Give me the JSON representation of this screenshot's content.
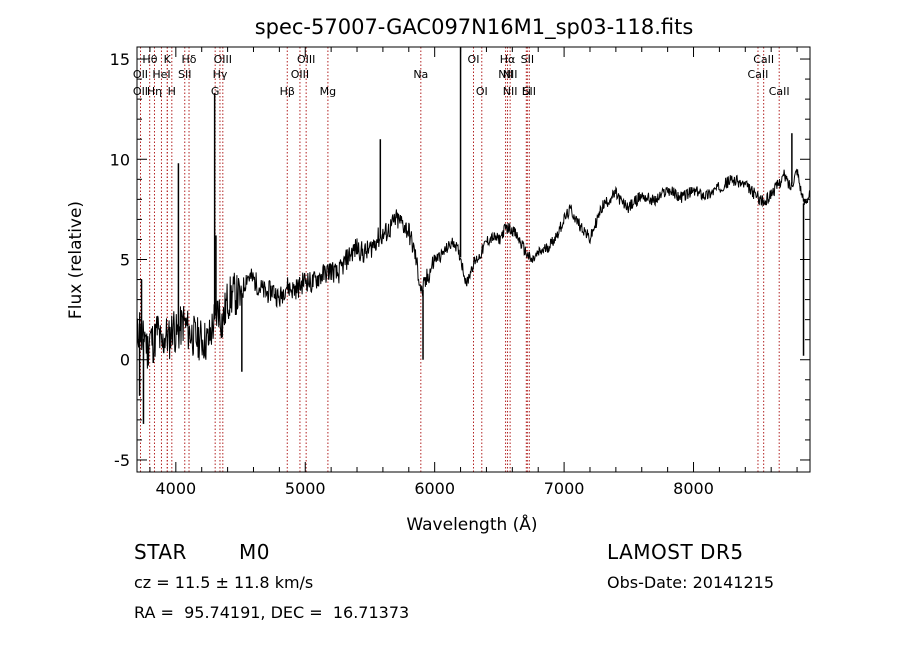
{
  "chart_data": {
    "type": "line",
    "title": "spec-57007-GAC097N16M1_sp03-118.fits",
    "xlabel": "Wavelength (Å)",
    "ylabel": "Flux (relative)",
    "xlim": [
      3700,
      8900
    ],
    "ylim": [
      -5.6,
      15.6
    ],
    "xticks": [
      4000,
      5000,
      6000,
      7000,
      8000
    ],
    "yticks": [
      -5,
      0,
      5,
      10,
      15
    ],
    "grid": false,
    "series": [
      {
        "x": [
          3700,
          3720,
          3740,
          3760,
          3780,
          3800,
          3830,
          3860,
          3890,
          3920,
          3950,
          3980,
          4000,
          4030,
          4060,
          4100,
          4150,
          4200,
          4250,
          4300,
          4330,
          4360,
          4400,
          4450,
          4500,
          4550,
          4600,
          4650,
          4700,
          4750,
          4800,
          4850,
          4900,
          4950,
          5000,
          5050,
          5100,
          5150,
          5200,
          5250,
          5300,
          5350,
          5400,
          5450,
          5500,
          5550,
          5600,
          5650,
          5700,
          5750,
          5800,
          5850,
          5900,
          5950,
          6000,
          6050,
          6100,
          6150,
          6200,
          6230,
          6250,
          6280,
          6300,
          6350,
          6400,
          6450,
          6500,
          6550,
          6600,
          6650,
          6700,
          6750,
          6800,
          6850,
          6900,
          6950,
          7000,
          7050,
          7100,
          7150,
          7200,
          7250,
          7300,
          7350,
          7400,
          7450,
          7500,
          7600,
          7700,
          7800,
          7900,
          8000,
          8100,
          8200,
          8300,
          8400,
          8500,
          8550,
          8600,
          8650,
          8700,
          8750,
          8800,
          8850,
          8900
        ],
        "y": [
          1.0,
          1.8,
          0.6,
          1.5,
          0.4,
          1.2,
          0.8,
          1.6,
          0.5,
          1.3,
          1.0,
          1.8,
          1.2,
          1.5,
          1.9,
          1.4,
          1.1,
          1.0,
          0.9,
          2.0,
          2.6,
          1.8,
          3.0,
          3.3,
          3.1,
          4.2,
          4.0,
          3.6,
          3.3,
          3.5,
          3.0,
          3.7,
          3.5,
          3.6,
          4.0,
          3.8,
          4.1,
          4.3,
          4.5,
          4.2,
          4.8,
          5.3,
          5.6,
          5.3,
          5.5,
          6.0,
          6.2,
          6.5,
          7.0,
          6.8,
          6.4,
          5.2,
          3.3,
          4.2,
          5.0,
          5.2,
          5.6,
          5.9,
          5.1,
          4.2,
          3.8,
          4.5,
          4.8,
          5.2,
          5.9,
          6.1,
          6.0,
          6.6,
          6.5,
          6.0,
          5.4,
          4.9,
          5.3,
          5.5,
          5.8,
          6.3,
          7.0,
          7.5,
          6.9,
          6.5,
          6.0,
          6.9,
          7.7,
          8.0,
          8.3,
          7.8,
          7.6,
          8.2,
          7.9,
          8.5,
          8.1,
          8.4,
          8.2,
          8.6,
          9.0,
          8.7,
          8.1,
          7.8,
          8.3,
          8.7,
          9.2,
          8.6,
          9.5,
          7.8,
          8.3
        ]
      }
    ],
    "spikes": [
      {
        "x": 3720,
        "y": -1.8
      },
      {
        "x": 3735,
        "y": 4.0
      },
      {
        "x": 3750,
        "y": -3.2
      },
      {
        "x": 4020,
        "y": 9.8
      },
      {
        "x": 4300,
        "y": 13.3
      },
      {
        "x": 4310,
        "y": 6.2
      },
      {
        "x": 4510,
        "y": -0.6
      },
      {
        "x": 5580,
        "y": 11.0
      },
      {
        "x": 5910,
        "y": 0.0
      },
      {
        "x": 6200,
        "y": 15.6
      },
      {
        "x": 6210,
        "y": 4.8
      },
      {
        "x": 8760,
        "y": 11.3
      },
      {
        "x": 8850,
        "y": 0.2
      }
    ],
    "lines": [
      {
        "label": "CaII",
        "x": 3934
      },
      {
        "label": "H",
        "x": 3969
      },
      {
        "label": "K",
        "x": 3934
      },
      {
        "label": "Hδ",
        "x": 4102
      },
      {
        "label": "SII",
        "x": 4069
      },
      {
        "label": "G",
        "x": 4304
      },
      {
        "label": "Hγ",
        "x": 4341
      },
      {
        "label": "OIII",
        "x": 4363
      },
      {
        "label": "Hβ",
        "x": 4861
      },
      {
        "label": "OIII",
        "x": 4959
      },
      {
        "label": "OIII",
        "x": 5007
      },
      {
        "label": "Mg",
        "x": 5175
      },
      {
        "label": "Na",
        "x": 5893
      },
      {
        "label": "OI",
        "x": 6300
      },
      {
        "label": "OI",
        "x": 6364
      },
      {
        "label": "NII",
        "x": 6548
      },
      {
        "label": "Hα",
        "x": 6563
      },
      {
        "label": "NII",
        "x": 6583
      },
      {
        "label": "Li",
        "x": 6708
      },
      {
        "label": "SII",
        "x": 6716
      },
      {
        "label": "SII",
        "x": 6731
      },
      {
        "label": "CaII",
        "x": 8498
      },
      {
        "label": "CaII",
        "x": 8542
      },
      {
        "label": "CaII",
        "x": 8662
      },
      {
        "label": "OII",
        "x": 3727
      },
      {
        "label": "Hθ",
        "x": 3798
      },
      {
        "label": "Hη",
        "x": 3835
      },
      {
        "label": "HeI",
        "x": 3889
      }
    ],
    "line_labels_top": [
      {
        "text": "Hθ",
        "x": 3800
      },
      {
        "text": "K",
        "x": 3934
      },
      {
        "text": "Hδ",
        "x": 4102
      },
      {
        "text": "OIII",
        "x": 4363
      },
      {
        "text": "OIII",
        "x": 5007
      },
      {
        "text": "OI",
        "x": 6300
      },
      {
        "text": "Hα",
        "x": 6563
      },
      {
        "text": "SII",
        "x": 6716
      },
      {
        "text": "CaII",
        "x": 8542
      }
    ],
    "line_labels_mid": [
      {
        "text": "OII",
        "x": 3727
      },
      {
        "text": "HeI",
        "x": 3889
      },
      {
        "text": "SII",
        "x": 4069
      },
      {
        "text": "Hγ",
        "x": 4341
      },
      {
        "text": "OIII",
        "x": 4959
      },
      {
        "text": "Na",
        "x": 5893
      },
      {
        "text": "NII",
        "x": 6548
      },
      {
        "text": "NII",
        "x": 6583
      },
      {
        "text": "CaII",
        "x": 8498
      }
    ],
    "line_labels_low": [
      {
        "text": "OII",
        "x": 3727
      },
      {
        "text": "Hη",
        "x": 3835
      },
      {
        "text": "H",
        "x": 3969
      },
      {
        "text": "G",
        "x": 4304
      },
      {
        "text": "Hβ",
        "x": 4861
      },
      {
        "text": "Mg",
        "x": 5175
      },
      {
        "text": "OI",
        "x": 6364
      },
      {
        "text": "NII",
        "x": 6583
      },
      {
        "text": "SII",
        "x": 6731
      },
      {
        "text": "CaII",
        "x": 8662
      },
      {
        "text": "Li",
        "x": 6708
      }
    ]
  },
  "info": {
    "class": "STAR",
    "subclass": "M0",
    "survey": "LAMOST DR5",
    "cz": "cz = 11.5 ± 11.8 km/s",
    "obs_date": "Obs-Date: 20141215",
    "coords": "RA =  95.74191, DEC =  16.71373"
  },
  "colors": {
    "line_markers": "#b22222",
    "spectrum": "#000000",
    "axes": "#000000"
  }
}
